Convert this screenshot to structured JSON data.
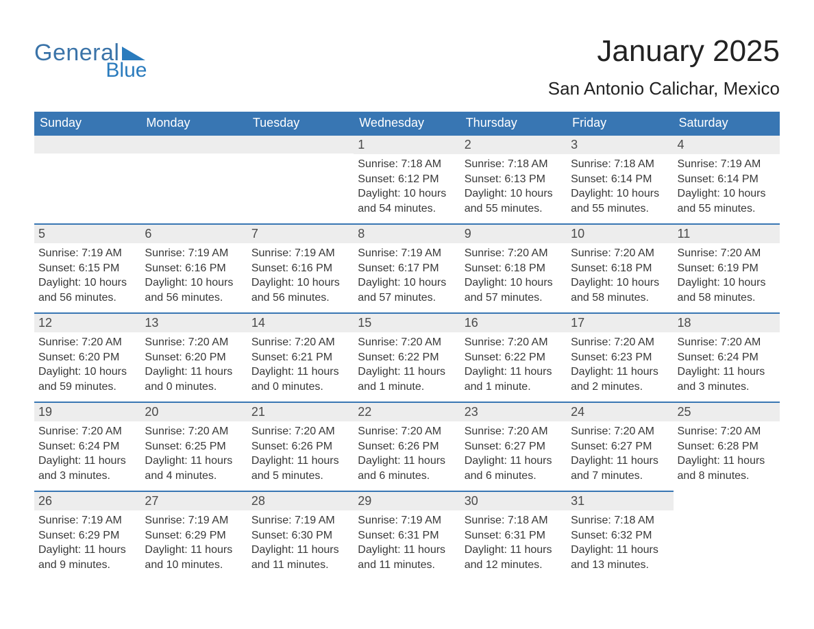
{
  "brand": {
    "word": "General",
    "sub": "Blue"
  },
  "title": {
    "month": "January 2025",
    "location": "San Antonio Calichar, Mexico"
  },
  "theme": {
    "header_bg": "#3876b3",
    "header_text": "#ffffff",
    "daynum_bg": "#ededed",
    "daynum_text": "#4a4a4a",
    "rule_color": "#3876b3",
    "body_text": "#373737",
    "page_bg": "#ffffff",
    "brand_primary": "#3a73a8",
    "brand_secondary": "#2a7bbd"
  },
  "columns": [
    "Sunday",
    "Monday",
    "Tuesday",
    "Wednesday",
    "Thursday",
    "Friday",
    "Saturday"
  ],
  "labels": {
    "sunrise": "Sunrise",
    "sunset": "Sunset",
    "daylight": "Daylight"
  },
  "weeks": [
    [
      null,
      null,
      null,
      {
        "n": "1",
        "sunrise": "7:18 AM",
        "sunset": "6:12 PM",
        "daylight": "10 hours and 54 minutes."
      },
      {
        "n": "2",
        "sunrise": "7:18 AM",
        "sunset": "6:13 PM",
        "daylight": "10 hours and 55 minutes."
      },
      {
        "n": "3",
        "sunrise": "7:18 AM",
        "sunset": "6:14 PM",
        "daylight": "10 hours and 55 minutes."
      },
      {
        "n": "4",
        "sunrise": "7:19 AM",
        "sunset": "6:14 PM",
        "daylight": "10 hours and 55 minutes."
      }
    ],
    [
      {
        "n": "5",
        "sunrise": "7:19 AM",
        "sunset": "6:15 PM",
        "daylight": "10 hours and 56 minutes."
      },
      {
        "n": "6",
        "sunrise": "7:19 AM",
        "sunset": "6:16 PM",
        "daylight": "10 hours and 56 minutes."
      },
      {
        "n": "7",
        "sunrise": "7:19 AM",
        "sunset": "6:16 PM",
        "daylight": "10 hours and 56 minutes."
      },
      {
        "n": "8",
        "sunrise": "7:19 AM",
        "sunset": "6:17 PM",
        "daylight": "10 hours and 57 minutes."
      },
      {
        "n": "9",
        "sunrise": "7:20 AM",
        "sunset": "6:18 PM",
        "daylight": "10 hours and 57 minutes."
      },
      {
        "n": "10",
        "sunrise": "7:20 AM",
        "sunset": "6:18 PM",
        "daylight": "10 hours and 58 minutes."
      },
      {
        "n": "11",
        "sunrise": "7:20 AM",
        "sunset": "6:19 PM",
        "daylight": "10 hours and 58 minutes."
      }
    ],
    [
      {
        "n": "12",
        "sunrise": "7:20 AM",
        "sunset": "6:20 PM",
        "daylight": "10 hours and 59 minutes."
      },
      {
        "n": "13",
        "sunrise": "7:20 AM",
        "sunset": "6:20 PM",
        "daylight": "11 hours and 0 minutes."
      },
      {
        "n": "14",
        "sunrise": "7:20 AM",
        "sunset": "6:21 PM",
        "daylight": "11 hours and 0 minutes."
      },
      {
        "n": "15",
        "sunrise": "7:20 AM",
        "sunset": "6:22 PM",
        "daylight": "11 hours and 1 minute."
      },
      {
        "n": "16",
        "sunrise": "7:20 AM",
        "sunset": "6:22 PM",
        "daylight": "11 hours and 1 minute."
      },
      {
        "n": "17",
        "sunrise": "7:20 AM",
        "sunset": "6:23 PM",
        "daylight": "11 hours and 2 minutes."
      },
      {
        "n": "18",
        "sunrise": "7:20 AM",
        "sunset": "6:24 PM",
        "daylight": "11 hours and 3 minutes."
      }
    ],
    [
      {
        "n": "19",
        "sunrise": "7:20 AM",
        "sunset": "6:24 PM",
        "daylight": "11 hours and 3 minutes."
      },
      {
        "n": "20",
        "sunrise": "7:20 AM",
        "sunset": "6:25 PM",
        "daylight": "11 hours and 4 minutes."
      },
      {
        "n": "21",
        "sunrise": "7:20 AM",
        "sunset": "6:26 PM",
        "daylight": "11 hours and 5 minutes."
      },
      {
        "n": "22",
        "sunrise": "7:20 AM",
        "sunset": "6:26 PM",
        "daylight": "11 hours and 6 minutes."
      },
      {
        "n": "23",
        "sunrise": "7:20 AM",
        "sunset": "6:27 PM",
        "daylight": "11 hours and 6 minutes."
      },
      {
        "n": "24",
        "sunrise": "7:20 AM",
        "sunset": "6:27 PM",
        "daylight": "11 hours and 7 minutes."
      },
      {
        "n": "25",
        "sunrise": "7:20 AM",
        "sunset": "6:28 PM",
        "daylight": "11 hours and 8 minutes."
      }
    ],
    [
      {
        "n": "26",
        "sunrise": "7:19 AM",
        "sunset": "6:29 PM",
        "daylight": "11 hours and 9 minutes."
      },
      {
        "n": "27",
        "sunrise": "7:19 AM",
        "sunset": "6:29 PM",
        "daylight": "11 hours and 10 minutes."
      },
      {
        "n": "28",
        "sunrise": "7:19 AM",
        "sunset": "6:30 PM",
        "daylight": "11 hours and 11 minutes."
      },
      {
        "n": "29",
        "sunrise": "7:19 AM",
        "sunset": "6:31 PM",
        "daylight": "11 hours and 11 minutes."
      },
      {
        "n": "30",
        "sunrise": "7:18 AM",
        "sunset": "6:31 PM",
        "daylight": "11 hours and 12 minutes."
      },
      {
        "n": "31",
        "sunrise": "7:18 AM",
        "sunset": "6:32 PM",
        "daylight": "11 hours and 13 minutes."
      },
      null
    ]
  ]
}
